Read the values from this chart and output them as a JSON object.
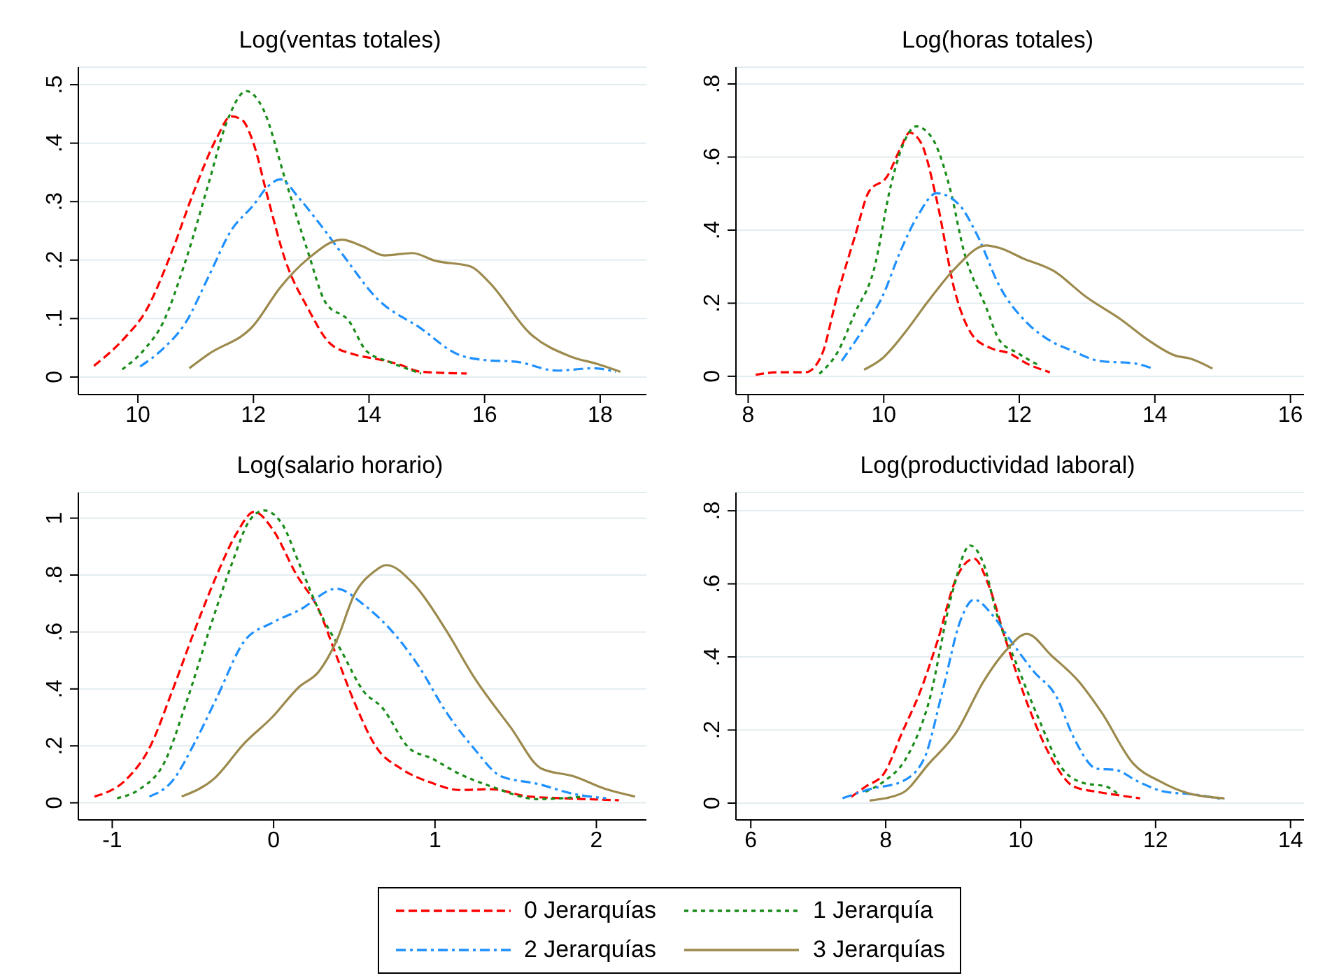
{
  "chart_data": [
    {
      "type": "line",
      "title": "Log(ventas totales)",
      "xlim": [
        8.97,
        18.8
      ],
      "xticks": [
        10,
        12,
        14,
        16,
        18
      ],
      "ylim": [
        -0.03,
        0.53
      ],
      "yticks": [
        {
          "value": 0,
          "label": "0"
        },
        {
          "value": 0.1,
          "label": ".1"
        },
        {
          "value": 0.2,
          "label": ".2"
        },
        {
          "value": 0.3,
          "label": ".3"
        },
        {
          "value": 0.4,
          "label": ".4"
        },
        {
          "value": 0.5,
          "label": ".5"
        }
      ],
      "grid": "y",
      "legend": "bottom",
      "series": [
        {
          "name": "0 Jerarquías",
          "color": "#ff0000",
          "line_style": "dashed",
          "x": [
            9.24,
            9.8,
            10.12,
            10.59,
            10.98,
            11.37,
            11.61,
            11.8,
            12.0,
            12.24,
            12.55,
            12.94,
            13.33,
            13.73,
            14.12,
            14.51,
            14.9,
            15.69
          ],
          "values": [
            0.019,
            0.07,
            0.11,
            0.215,
            0.32,
            0.41,
            0.446,
            0.44,
            0.4,
            0.31,
            0.2,
            0.118,
            0.057,
            0.039,
            0.031,
            0.022,
            0.009,
            0.006
          ]
        },
        {
          "name": "1 Jerarquía",
          "color": "#1a8c1a",
          "line_style": "dotted",
          "x": [
            9.73,
            10.12,
            10.43,
            10.82,
            11.22,
            11.53,
            11.88,
            12.16,
            12.55,
            12.94,
            13.25,
            13.65,
            13.96,
            14.35,
            14.9
          ],
          "values": [
            0.013,
            0.048,
            0.092,
            0.197,
            0.33,
            0.434,
            0.489,
            0.46,
            0.338,
            0.215,
            0.127,
            0.096,
            0.044,
            0.026,
            0.006
          ]
        },
        {
          "name": "2 Jerarquías",
          "color": "#1e90ff",
          "line_style": "dashdot",
          "x": [
            10.04,
            10.43,
            10.82,
            11.22,
            11.61,
            12.0,
            12.24,
            12.47,
            12.78,
            13.1,
            13.57,
            14.12,
            14.9,
            15.53,
            16.0,
            16.55,
            17.25,
            17.88,
            18.27
          ],
          "values": [
            0.018,
            0.048,
            0.092,
            0.171,
            0.25,
            0.294,
            0.325,
            0.338,
            0.307,
            0.268,
            0.206,
            0.136,
            0.083,
            0.039,
            0.029,
            0.026,
            0.011,
            0.015,
            0.009
          ]
        },
        {
          "name": "3 Jerarquías",
          "color": "#9c8a4d",
          "line_style": "solid",
          "x": [
            10.89,
            11.22,
            12.0,
            12.47,
            12.94,
            13.53,
            13.88,
            14.27,
            14.75,
            15.14,
            15.76,
            16.08,
            16.78,
            17.49,
            17.96,
            18.35
          ],
          "values": [
            0.015,
            0.039,
            0.088,
            0.154,
            0.202,
            0.235,
            0.224,
            0.208,
            0.212,
            0.199,
            0.189,
            0.162,
            0.075,
            0.035,
            0.022,
            0.009
          ]
        }
      ]
    },
    {
      "type": "line",
      "title": "Log(horas totales)",
      "xlim": [
        7.82,
        16.2
      ],
      "xticks": [
        8,
        10,
        12,
        14,
        16
      ],
      "ylim": [
        -0.05,
        0.846
      ],
      "yticks": [
        {
          "value": 0,
          "label": "0"
        },
        {
          "value": 0.2,
          "label": ".2"
        },
        {
          "value": 0.4,
          "label": ".4"
        },
        {
          "value": 0.6,
          "label": ".6"
        },
        {
          "value": 0.8,
          "label": ".8"
        }
      ],
      "grid": "y",
      "series": [
        {
          "color": "#ff0000",
          "line_style": "dashed",
          "x": [
            8.11,
            8.45,
            8.85,
            9.08,
            9.31,
            9.58,
            9.78,
            10.05,
            10.25,
            10.38,
            10.55,
            10.78,
            11.05,
            11.31,
            11.58,
            11.85,
            12.11,
            12.45
          ],
          "values": [
            0.004,
            0.011,
            0.011,
            0.056,
            0.218,
            0.386,
            0.505,
            0.547,
            0.625,
            0.667,
            0.639,
            0.484,
            0.232,
            0.112,
            0.077,
            0.063,
            0.035,
            0.011
          ]
        },
        {
          "color": "#1a8c1a",
          "line_style": "dotted",
          "x": [
            9.05,
            9.31,
            9.58,
            9.85,
            10.11,
            10.28,
            10.48,
            10.71,
            10.98,
            11.18,
            11.51,
            11.71,
            11.98,
            12.31
          ],
          "values": [
            0.007,
            0.063,
            0.175,
            0.288,
            0.526,
            0.632,
            0.684,
            0.653,
            0.512,
            0.344,
            0.189,
            0.098,
            0.063,
            0.028
          ]
        },
        {
          "color": "#1e90ff",
          "line_style": "dashdot",
          "x": [
            9.38,
            9.71,
            9.98,
            10.25,
            10.51,
            10.78,
            11.11,
            11.38,
            11.71,
            12.11,
            12.45,
            12.78,
            13.18,
            13.71,
            13.97
          ],
          "values": [
            0.042,
            0.133,
            0.218,
            0.344,
            0.442,
            0.501,
            0.47,
            0.386,
            0.246,
            0.147,
            0.098,
            0.07,
            0.042,
            0.035,
            0.021
          ]
        },
        {
          "color": "#9c8a4d",
          "line_style": "solid",
          "x": [
            9.71,
            9.98,
            10.31,
            10.65,
            11.05,
            11.51,
            11.71,
            12.05,
            12.51,
            12.98,
            13.51,
            13.91,
            14.31,
            14.51,
            14.85
          ],
          "values": [
            0.018,
            0.049,
            0.119,
            0.204,
            0.295,
            0.358,
            0.351,
            0.323,
            0.288,
            0.218,
            0.154,
            0.098,
            0.056,
            0.049,
            0.021
          ]
        }
      ]
    },
    {
      "type": "line",
      "title": "Log(salario horario)",
      "xlim": [
        -1.21,
        2.31
      ],
      "xticks": [
        -1,
        0,
        1,
        2
      ],
      "ylim": [
        -0.06,
        1.09
      ],
      "yticks": [
        {
          "value": 0,
          "label": "0"
        },
        {
          "value": 0.2,
          "label": ".2"
        },
        {
          "value": 0.4,
          "label": ".4"
        },
        {
          "value": 0.6,
          "label": ".6"
        },
        {
          "value": 0.8,
          "label": ".8"
        },
        1
      ],
      "grid": "y",
      "series": [
        {
          "color": "#ff0000",
          "line_style": "dashed",
          "x": [
            -1.11,
            -0.91,
            -0.77,
            -0.63,
            -0.49,
            -0.35,
            -0.23,
            -0.12,
            -0.01,
            0.14,
            0.28,
            0.39,
            0.5,
            0.64,
            0.79,
            0.98,
            1.15,
            1.35,
            1.58,
            1.8,
            2.14
          ],
          "values": [
            0.022,
            0.084,
            0.192,
            0.39,
            0.605,
            0.803,
            0.946,
            1.022,
            0.964,
            0.803,
            0.677,
            0.515,
            0.354,
            0.192,
            0.12,
            0.07,
            0.045,
            0.048,
            0.022,
            0.016,
            0.009
          ]
        },
        {
          "color": "#1a8c1a",
          "line_style": "dotted",
          "x": [
            -0.97,
            -0.83,
            -0.68,
            -0.54,
            -0.4,
            -0.26,
            -0.15,
            -0.06,
            0.05,
            0.16,
            0.28,
            0.42,
            0.56,
            0.67,
            0.84,
            0.98,
            1.15,
            1.35,
            1.64,
            1.92
          ],
          "values": [
            0.016,
            0.048,
            0.138,
            0.354,
            0.605,
            0.838,
            0.991,
            1.027,
            0.982,
            0.838,
            0.677,
            0.533,
            0.39,
            0.336,
            0.192,
            0.156,
            0.102,
            0.057,
            0.013,
            0.022
          ]
        },
        {
          "color": "#1e90ff",
          "line_style": "dashdot",
          "x": [
            -0.77,
            -0.63,
            -0.49,
            -0.35,
            -0.18,
            -0.01,
            0.16,
            0.39,
            0.56,
            0.73,
            0.9,
            1.07,
            1.24,
            1.41,
            1.64,
            1.86,
            2.06
          ],
          "values": [
            0.022,
            0.075,
            0.21,
            0.372,
            0.569,
            0.632,
            0.677,
            0.752,
            0.695,
            0.605,
            0.479,
            0.318,
            0.192,
            0.093,
            0.066,
            0.031,
            0.016
          ]
        },
        {
          "color": "#9c8a4d",
          "line_style": "solid",
          "x": [
            -0.57,
            -0.37,
            -0.18,
            -0.01,
            0.16,
            0.28,
            0.39,
            0.5,
            0.62,
            0.7,
            0.87,
            1.07,
            1.24,
            1.47,
            1.66,
            1.86,
            2.06,
            2.24
          ],
          "values": [
            0.022,
            0.084,
            0.21,
            0.3,
            0.408,
            0.461,
            0.569,
            0.731,
            0.811,
            0.835,
            0.767,
            0.605,
            0.443,
            0.264,
            0.12,
            0.093,
            0.048,
            0.022
          ]
        }
      ]
    },
    {
      "type": "line",
      "title": "Log(productividad laboral)",
      "xlim": [
        5.78,
        14.2
      ],
      "xticks": [
        6,
        8,
        10,
        12,
        14
      ],
      "ylim": [
        -0.046,
        0.85
      ],
      "yticks": [
        {
          "value": 0,
          "label": "0"
        },
        {
          "value": 0.2,
          "label": ".2"
        },
        {
          "value": 0.4,
          "label": ".4"
        },
        {
          "value": 0.6,
          "label": ".6"
        },
        {
          "value": 0.8,
          "label": ".8"
        }
      ],
      "grid": "y",
      "series": [
        {
          "color": "#ff0000",
          "line_style": "dashed",
          "x": [
            7.49,
            7.7,
            7.97,
            8.24,
            8.51,
            8.77,
            9.04,
            9.31,
            9.52,
            9.78,
            10.12,
            10.46,
            10.79,
            11.13,
            11.47,
            11.77
          ],
          "values": [
            0.017,
            0.045,
            0.08,
            0.192,
            0.305,
            0.445,
            0.613,
            0.669,
            0.599,
            0.445,
            0.262,
            0.122,
            0.045,
            0.031,
            0.021,
            0.013
          ]
        },
        {
          "color": "#1a8c1a",
          "line_style": "dotted",
          "x": [
            7.7,
            7.97,
            8.3,
            8.64,
            8.98,
            9.25,
            9.45,
            9.65,
            9.92,
            10.26,
            10.59,
            10.93,
            11.27,
            11.47
          ],
          "values": [
            0.031,
            0.059,
            0.122,
            0.277,
            0.571,
            0.705,
            0.655,
            0.515,
            0.389,
            0.234,
            0.101,
            0.055,
            0.045,
            0.021
          ]
        },
        {
          "color": "#1e90ff",
          "line_style": "dashdot",
          "x": [
            7.36,
            7.76,
            8.24,
            8.57,
            8.84,
            9.11,
            9.31,
            9.58,
            9.85,
            10.19,
            10.53,
            10.79,
            11.13,
            11.4,
            11.74,
            12.14,
            12.55,
            13.02
          ],
          "values": [
            0.013,
            0.038,
            0.059,
            0.122,
            0.305,
            0.501,
            0.557,
            0.515,
            0.445,
            0.361,
            0.291,
            0.178,
            0.094,
            0.091,
            0.059,
            0.031,
            0.024,
            0.01
          ]
        },
        {
          "color": "#9c8a4d",
          "line_style": "solid",
          "x": [
            7.76,
            8.24,
            8.64,
            9.04,
            9.45,
            9.78,
            10.09,
            10.46,
            10.86,
            11.2,
            11.67,
            12.07,
            12.48,
            13.02
          ],
          "values": [
            0.007,
            0.027,
            0.108,
            0.192,
            0.333,
            0.417,
            0.463,
            0.403,
            0.333,
            0.248,
            0.108,
            0.059,
            0.027,
            0.013
          ]
        }
      ]
    }
  ]
}
